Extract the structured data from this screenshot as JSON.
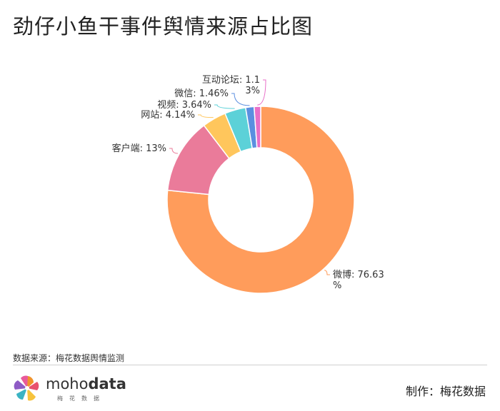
{
  "header": {
    "title": "劲仔小鱼干事件舆情来源占比图"
  },
  "chart_data": {
    "type": "pie",
    "donut": true,
    "series": [
      {
        "slices": [
          {
            "label": "微博",
            "value": 76.63,
            "color": "#FF9C5B",
            "text_lines": [
              "微博: 76.63",
              "%"
            ]
          },
          {
            "label": "客户端",
            "value": 13,
            "color": "#EA7B9A",
            "text_lines": [
              "客户端: 13%"
            ]
          },
          {
            "label": "网站",
            "value": 4.14,
            "color": "#FFC65C",
            "text_lines": [
              "网站: 4.14%"
            ]
          },
          {
            "label": "视频",
            "value": 3.64,
            "color": "#5CD1D8",
            "text_lines": [
              "视频: 3.64%"
            ]
          },
          {
            "label": "微信",
            "value": 1.46,
            "color": "#5B8FE0",
            "text_lines": [
              "微信: 1.46%"
            ]
          },
          {
            "label": "互动论坛",
            "value": 1.13,
            "color": "#E86FC8",
            "text_lines": [
              "互动论坛: 1.1",
              "3%"
            ]
          }
        ]
      }
    ]
  },
  "footer": {
    "source": "数据来源：梅花数据舆情监测",
    "logo_main_prefix": "moho",
    "logo_main_bold": "data",
    "logo_sub": "梅花数据",
    "credit": "制作：梅花数据"
  }
}
